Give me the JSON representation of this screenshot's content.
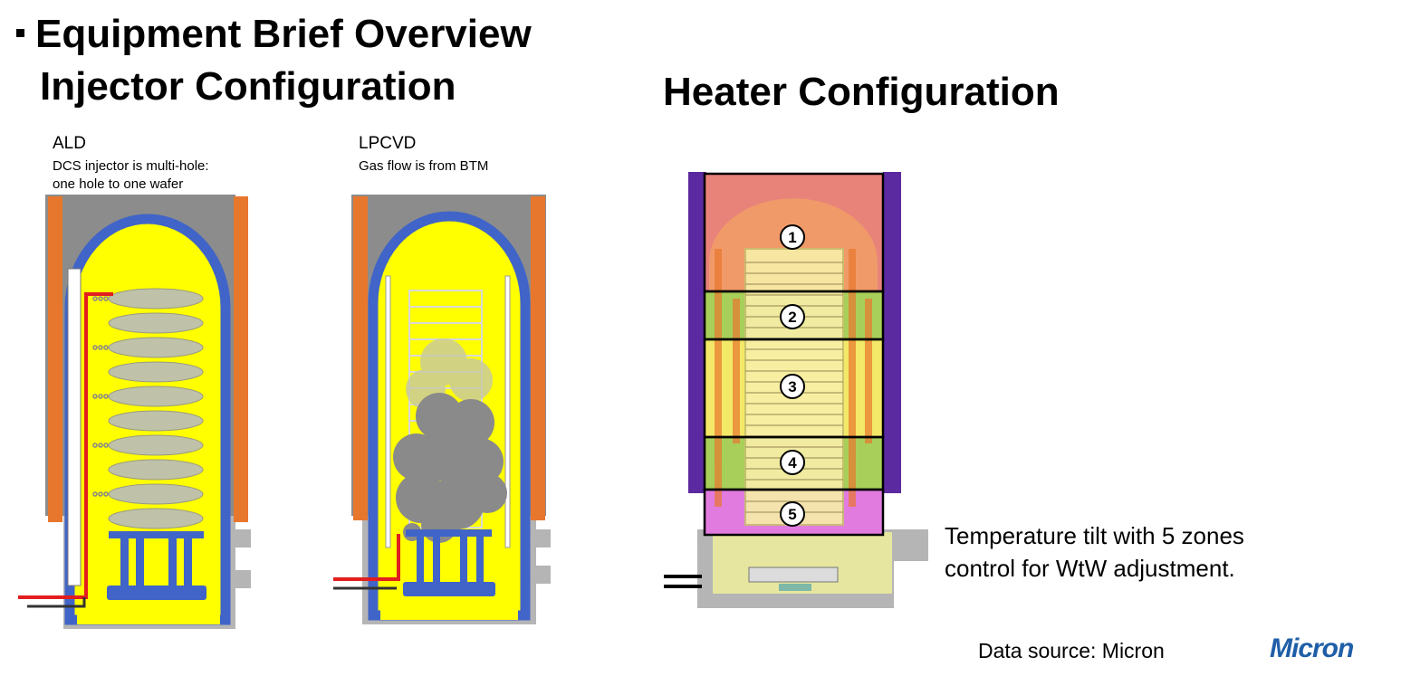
{
  "header": {
    "title": "Equipment Brief Overview",
    "injector_title": "Injector Configuration",
    "heater_title": "Heater Configuration"
  },
  "ald": {
    "label": "ALD",
    "note_line1": "DCS injector is multi-hole:",
    "note_line2": "one hole to one wafer"
  },
  "lpcvd": {
    "label": "LPCVD",
    "note": "Gas flow is from BTM"
  },
  "heater": {
    "zones": [
      "1",
      "2",
      "3",
      "4",
      "5"
    ],
    "zone_colors": [
      "#e8837a",
      "#a8cf5a",
      "#f3e867",
      "#a8cf5a",
      "#e27be0"
    ],
    "caption_line1": "Temperature tilt with 5 zones",
    "caption_line2": "control  for WtW adjustment."
  },
  "footer": {
    "source": "Data source: Micron",
    "logo_text": "Micron"
  }
}
